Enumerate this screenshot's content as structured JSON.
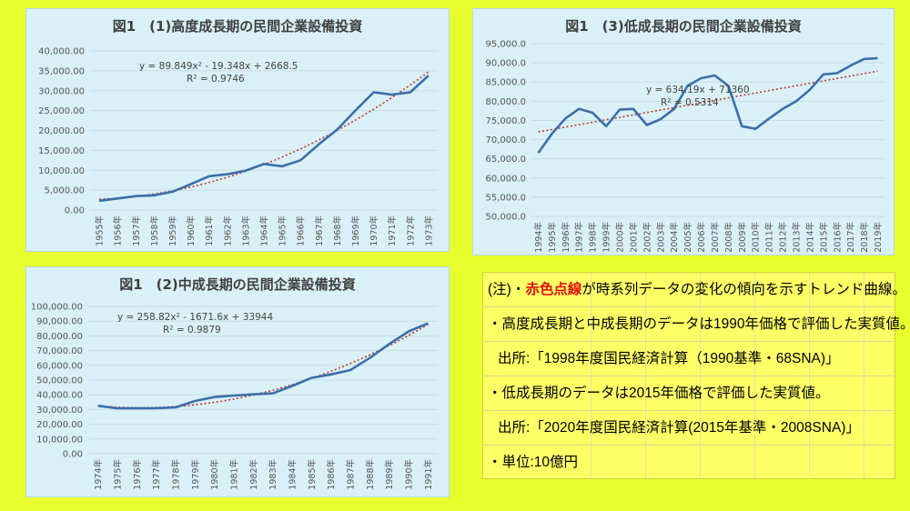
{
  "chart_data": [
    {
      "type": "line",
      "title": "図1　(1)高度成長期の民間企業設備投資",
      "categories": [
        "1955年",
        "1956年",
        "1957年",
        "1958年",
        "1959年",
        "1960年",
        "1961年",
        "1962年",
        "1963年",
        "1964年",
        "1965年",
        "1966年",
        "1967年",
        "1968年",
        "1969年",
        "1970年",
        "1971年",
        "1972年",
        "1973年"
      ],
      "series": [
        {
          "values": [
            2300,
            2900,
            3500,
            3700,
            4600,
            6500,
            8500,
            9000,
            9900,
            11600,
            11000,
            12500,
            16500,
            20200,
            25000,
            29600,
            29000,
            29600,
            33800
          ]
        }
      ],
      "trendline": {
        "type": "polynomial",
        "equation": "y = 89.849x² - 19.348x + 2668.5",
        "r2": "R² = 0.9746",
        "color": "#c0392b"
      },
      "ylim": [
        0,
        40000
      ],
      "yticks": [
        "0.00",
        "5,000.00",
        "10,000.00",
        "15,000.00",
        "20,000.00",
        "25,000.00",
        "30,000.00",
        "35,000.00",
        "40,000.00"
      ],
      "series_color": "#3b6fa8",
      "grid": true
    },
    {
      "type": "line",
      "title": "図1　(3)低成長期の民間企業設備投資",
      "categories": [
        "1994年",
        "1995年",
        "1996年",
        "1997年",
        "1998年",
        "1999年",
        "2000年",
        "2001年",
        "2002年",
        "2003年",
        "2004年",
        "2005年",
        "2006年",
        "2007年",
        "2008年",
        "2009年",
        "2010年",
        "2011年",
        "2012年",
        "2013年",
        "2014年",
        "2015年",
        "2016年",
        "2017年",
        "2018年",
        "2019年"
      ],
      "series": [
        {
          "values": [
            66500,
            71500,
            75500,
            78000,
            77000,
            73500,
            77800,
            78000,
            73800,
            75300,
            78000,
            84000,
            86000,
            86700,
            84000,
            73500,
            72800,
            75500,
            78000,
            80000,
            83000,
            87000,
            87300,
            89300,
            91000,
            91200
          ]
        }
      ],
      "trendline": {
        "type": "linear",
        "equation": "y = 634.19x + 71360",
        "r2": "R² = 0.5314",
        "color": "#c0392b"
      },
      "ylim": [
        50000,
        95000
      ],
      "yticks": [
        "50,000.0",
        "55,000.0",
        "60,000.0",
        "65,000.0",
        "70,000.0",
        "75,000.0",
        "80,000.0",
        "85,000.0",
        "90,000.0",
        "95,000.0"
      ],
      "series_color": "#3b6fa8",
      "grid": true
    },
    {
      "type": "line",
      "title": "図1　(2)中成長期の民間企業設備投資",
      "categories": [
        "1974年",
        "1975年",
        "1976年",
        "1977年",
        "1978年",
        "1979年",
        "1980年",
        "1981年",
        "1982年",
        "1983年",
        "1984年",
        "1985年",
        "1986年",
        "1987年",
        "1988年",
        "1989年",
        "1990年",
        "1991年"
      ],
      "series": [
        {
          "values": [
            32500,
            30800,
            30800,
            30900,
            31500,
            35800,
            38500,
            39500,
            40300,
            41000,
            46000,
            51500,
            53800,
            56800,
            65000,
            74500,
            83000,
            88500
          ]
        }
      ],
      "trendline": {
        "type": "polynomial",
        "equation": "y = 258.82x² - 1671.6x + 33944",
        "r2": "R² = 0.9879",
        "color": "#c0392b"
      },
      "ylim": [
        0,
        100000
      ],
      "yticks": [
        "0.00",
        "10,000.00",
        "20,000.00",
        "30,000.00",
        "40,000.00",
        "50,000.00",
        "60,000.00",
        "70,000.00",
        "80,000.00",
        "90,000.00",
        "100,000.00"
      ],
      "series_color": "#3b6fa8",
      "grid": true
    }
  ],
  "notes": {
    "line1_prefix": "(注)・",
    "line1_red": "赤色点線",
    "line1_suffix": "が時系列データの変化の傾向を示すトレンド曲線。",
    "line2": "・高度成長期と中成長期のデータは1990年価格で評価した実質値。",
    "line3": "出所:「1998年度国民経済計算（1990基準・68SNA)」",
    "line4": "・低成長期のデータは2015年価格で評価した実質値。",
    "line5": "出所:「2020年度国民経済計算(2015年基準・2008SNA)」",
    "line6": "・単位:10億円"
  }
}
